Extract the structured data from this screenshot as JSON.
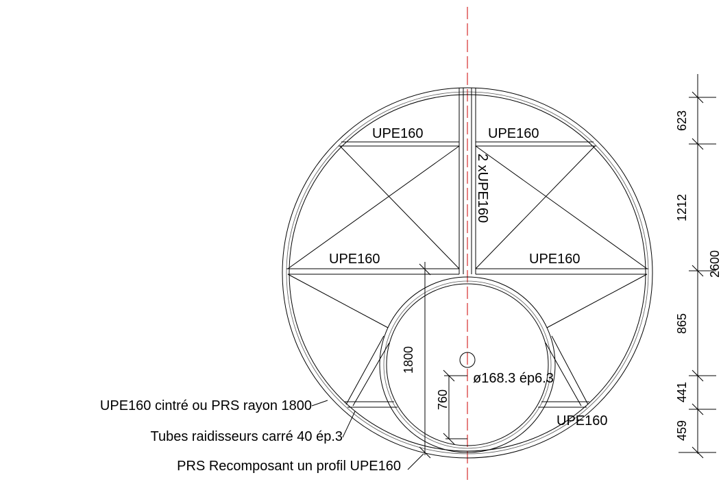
{
  "beams": {
    "top_left": "UPE160",
    "top_right": "UPE160",
    "mid_left": "UPE160",
    "mid_right": "UPE160",
    "bottom_right": "UPE160",
    "center": "2 xUPE160"
  },
  "tube": "ø168.3 ép6.3",
  "callouts": [
    "UPE160 cintré ou PRS rayon 1800",
    "Tubes raidisseurs carré 40 ép.3",
    "PRS Recomposant un profil UPE160"
  ],
  "dimensions": {
    "right": [
      "623",
      "1212",
      "865",
      "441",
      "459"
    ],
    "total": "2600",
    "radius": "1800",
    "offset": "760"
  }
}
